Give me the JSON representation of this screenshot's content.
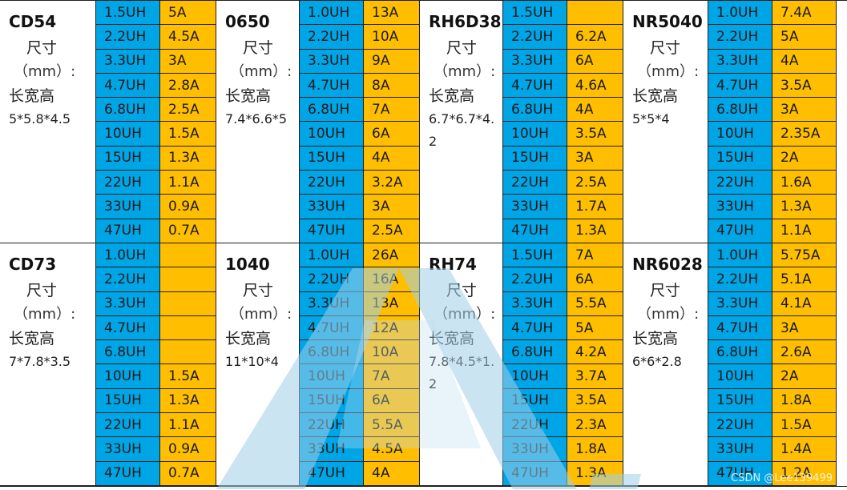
{
  "groups": [
    {
      "rows": [
        {
          "model": "CD54",
          "size_label": "尺寸",
          "unit_label": "（mm）:",
          "lwh_label": "长宽高",
          "dims": "5*5.8*4.5",
          "inductance": [
            "1.5UH",
            "2.2UH",
            "3.3UH",
            "4.7UH",
            "6.8UH",
            "10UH",
            "15UH",
            "22UH",
            "33UH",
            "47UH"
          ],
          "current": [
            "5A",
            "4.5A",
            "3A",
            "2.8A",
            "2.5A",
            "1.5A",
            "1.3A",
            "1.1A",
            "0.9A",
            "0.7A"
          ]
        },
        {
          "model": "0650",
          "size_label": "尺寸",
          "unit_label": "（mm）:",
          "lwh_label": "长宽高",
          "dims": "7.4*6.6*5",
          "inductance": [
            "1.0UH",
            "2.2UH",
            "3.3UH",
            "4.7UH",
            "6.8UH",
            "10UH",
            "15UH",
            "22UH",
            "33UH",
            "47UH"
          ],
          "current": [
            "13A",
            "10A",
            "9A",
            "8A",
            "7A",
            "6A",
            "4A",
            "3.2A",
            "3A",
            "2.5A"
          ]
        },
        {
          "model": "RH6D38",
          "size_label": "尺寸",
          "unit_label": "（mm）:",
          "lwh_label": "长宽高",
          "dims": "6.7*6.7*4.2",
          "inductance": [
            "1.5UH",
            "2.2UH",
            "3.3UH",
            "4.7UH",
            "6.8UH",
            "10UH",
            "15UH",
            "22UH",
            "33UH",
            "47UH"
          ],
          "current": [
            "",
            "6.2A",
            "6A",
            "4.6A",
            "4A",
            "3.5A",
            "3A",
            "2.5A",
            "1.7A",
            "1.3A"
          ]
        },
        {
          "model": "NR5040",
          "size_label": "尺寸",
          "unit_label": "（mm）:",
          "lwh_label": "长宽高",
          "dims": "5*5*4",
          "inductance": [
            "1.0UH",
            "2.2UH",
            "3.3UH",
            "4.7UH",
            "6.8UH",
            "10UH",
            "15UH",
            "22UH",
            "33UH",
            "47UH"
          ],
          "current": [
            "7.4A",
            "5A",
            "4A",
            "3.5A",
            "3A",
            "2.35A",
            "2A",
            "1.6A",
            "1.3A",
            "1.1A"
          ]
        }
      ]
    },
    {
      "rows": [
        {
          "model": "CD73",
          "size_label": "尺寸",
          "unit_label": "（mm）:",
          "lwh_label": "长宽高",
          "dims": "7*7.8*3.5",
          "inductance": [
            "1.0UH",
            "2.2UH",
            "3.3UH",
            "4.7UH",
            "6.8UH",
            "10UH",
            "15UH",
            "22UH",
            "33UH",
            "47UH"
          ],
          "current": [
            "",
            "",
            "",
            "",
            "",
            "1.5A",
            "1.3A",
            "1.1A",
            "0.9A",
            "0.7A"
          ]
        },
        {
          "model": "1040",
          "size_label": "尺寸",
          "unit_label": "（mm）:",
          "lwh_label": "长宽高",
          "dims": "11*10*4",
          "inductance": [
            "1.0UH",
            "2.2UH",
            "3.3UH",
            "4.7UH",
            "6.8UH",
            "10UH",
            "15UH",
            "22UH",
            "33UH",
            "47UH"
          ],
          "current": [
            "26A",
            "16A",
            "13A",
            "12A",
            "10A",
            "7A",
            "6A",
            "5.5A",
            "4.5A",
            "4A"
          ]
        },
        {
          "model": "RH74",
          "size_label": "尺寸",
          "unit_label": "（mm）:",
          "lwh_label": "长宽高",
          "dims": "7.8*4.5*1.2",
          "inductance": [
            "1.5UH",
            "2.2UH",
            "3.3UH",
            "4.7UH",
            "6.8UH",
            "10UH",
            "15UH",
            "22UH",
            "33UH",
            "47UH"
          ],
          "current": [
            "7A",
            "6A",
            "5.5A",
            "5A",
            "4.2A",
            "3.7A",
            "3.5A",
            "2.3A",
            "1.8A",
            "1.3A"
          ]
        },
        {
          "model": "NR6028",
          "size_label": "尺寸",
          "unit_label": "（mm）:",
          "lwh_label": "长宽高",
          "dims": "6*6*2.8",
          "inductance": [
            "1.0UH",
            "2.2UH",
            "3.3UH",
            "4.7UH",
            "6.8UH",
            "10UH",
            "15UH",
            "22UH",
            "33UH",
            "47UH"
          ],
          "current": [
            "5.75A",
            "5.1A",
            "4.1A",
            "3A",
            "2.6A",
            "2A",
            "1.8A",
            "1.5A",
            "1.4A",
            "1.2A"
          ]
        }
      ]
    }
  ],
  "watermark": {
    "credit": "CSDN @Lee139499"
  },
  "colors": {
    "inductance_bg": "#00a5e6",
    "current_bg": "#ffbe00",
    "grid_line": "#1f1f1f",
    "watermark_blue": "#cde6f6"
  }
}
